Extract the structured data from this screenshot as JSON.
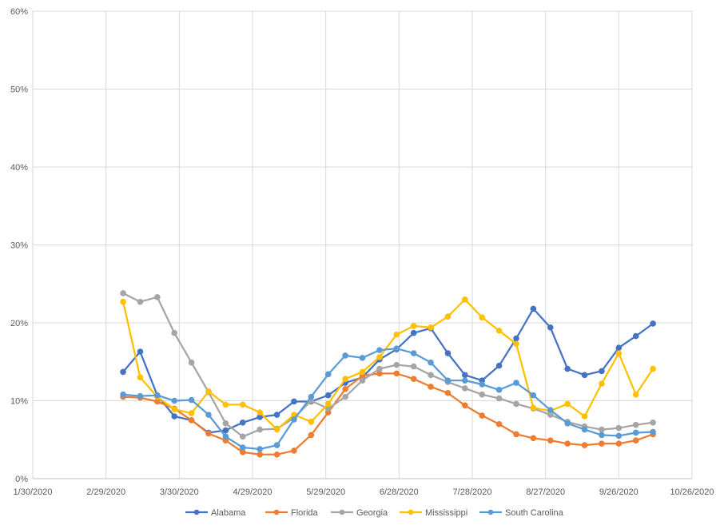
{
  "chart_data": {
    "type": "line",
    "title": "",
    "xlabel": "",
    "ylabel": "",
    "x_ticks": [
      "1/30/2020",
      "2/29/2020",
      "3/30/2020",
      "4/29/2020",
      "5/29/2020",
      "6/28/2020",
      "7/28/2020",
      "8/27/2020",
      "9/26/2020",
      "10/26/2020"
    ],
    "y_ticks": [
      "0%",
      "10%",
      "20%",
      "30%",
      "40%",
      "50%",
      "60%"
    ],
    "ylim": [
      0,
      60
    ],
    "x_range_days": [
      0,
      270
    ],
    "grid": true,
    "legend_position": "bottom",
    "dates": [
      "3/7/2020",
      "3/14/2020",
      "3/21/2020",
      "3/28/2020",
      "4/4/2020",
      "4/11/2020",
      "4/18/2020",
      "4/25/2020",
      "5/2/2020",
      "5/9/2020",
      "5/16/2020",
      "5/23/2020",
      "5/30/2020",
      "6/6/2020",
      "6/13/2020",
      "6/20/2020",
      "6/27/2020",
      "7/4/2020",
      "7/11/2020",
      "7/18/2020",
      "7/25/2020",
      "8/1/2020",
      "8/8/2020",
      "8/15/2020",
      "8/22/2020",
      "8/29/2020",
      "9/5/2020",
      "9/12/2020",
      "9/19/2020",
      "9/26/2020",
      "10/3/2020",
      "10/10/2020"
    ],
    "x_days": [
      37,
      44,
      51,
      58,
      65,
      72,
      79,
      86,
      93,
      100,
      107,
      114,
      121,
      128,
      135,
      142,
      149,
      156,
      163,
      170,
      177,
      184,
      191,
      198,
      205,
      212,
      219,
      226,
      233,
      240,
      247,
      254
    ],
    "series": [
      {
        "name": "Alabama",
        "color": "#4472C4",
        "values": [
          13.7,
          16.3,
          10.7,
          8.0,
          7.5,
          5.9,
          6.2,
          7.2,
          7.9,
          8.2,
          9.9,
          9.9,
          10.7,
          12.3,
          13.0,
          15.3,
          16.6,
          18.7,
          19.3,
          16.1,
          13.3,
          12.6,
          14.5,
          18.0,
          21.8,
          19.4,
          14.1,
          13.3,
          13.8,
          16.8,
          18.3,
          19.9
        ]
      },
      {
        "name": "Florida",
        "color": "#ED7D31",
        "values": [
          10.5,
          10.4,
          9.9,
          9.0,
          7.5,
          5.8,
          4.9,
          3.4,
          3.1,
          3.1,
          3.6,
          5.6,
          8.5,
          11.5,
          13.2,
          13.5,
          13.5,
          12.8,
          11.8,
          11.0,
          9.4,
          8.1,
          7.0,
          5.7,
          5.2,
          4.9,
          4.5,
          4.3,
          4.5,
          4.5,
          4.9,
          5.7
        ]
      },
      {
        "name": "Georgia",
        "color": "#A5A5A5",
        "values": [
          23.8,
          22.7,
          23.3,
          18.7,
          14.9,
          11.1,
          7.1,
          5.4,
          6.3,
          6.4,
          7.8,
          10.0,
          9.0,
          10.5,
          12.6,
          14.1,
          14.6,
          14.4,
          13.3,
          12.4,
          11.6,
          10.8,
          10.3,
          9.6,
          9.0,
          8.2,
          7.3,
          6.7,
          6.3,
          6.5,
          6.9,
          7.2
        ]
      },
      {
        "name": "Mississippi",
        "color": "#FFC000",
        "values": [
          22.7,
          13.0,
          10.5,
          8.9,
          8.4,
          11.2,
          9.5,
          9.5,
          8.5,
          6.3,
          8.2,
          7.3,
          9.6,
          12.8,
          13.7,
          15.6,
          18.5,
          19.6,
          19.4,
          20.8,
          23.0,
          20.7,
          19.0,
          17.3,
          9.1,
          8.7,
          9.6,
          8.0,
          12.2,
          16.1,
          10.8,
          14.1
        ]
      },
      {
        "name": "South Carolina",
        "color": "#5B9BD5",
        "values": [
          10.8,
          10.6,
          10.7,
          10.0,
          10.1,
          8.2,
          5.4,
          4.0,
          3.8,
          4.3,
          7.6,
          10.5,
          13.4,
          15.8,
          15.5,
          16.5,
          16.7,
          16.1,
          14.9,
          12.6,
          12.6,
          12.1,
          11.4,
          12.3,
          10.7,
          8.8,
          7.1,
          6.3,
          5.6,
          5.5,
          5.9,
          6.0
        ]
      }
    ]
  }
}
